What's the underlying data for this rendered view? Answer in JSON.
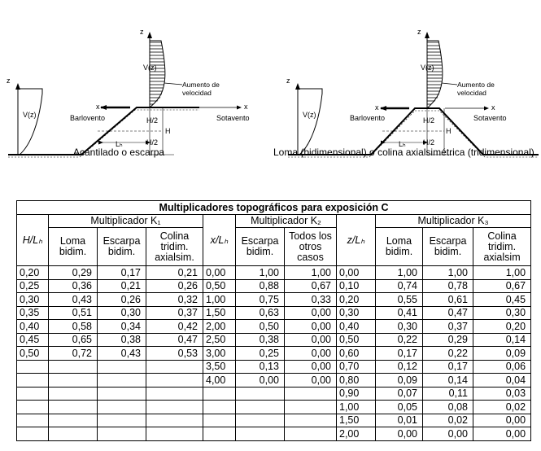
{
  "figure": {
    "left": {
      "caption": "Acantilado o escarpa",
      "z": "z",
      "vz": "V(z)",
      "x": "x",
      "barlovento": "Barlovento",
      "sotavento": "Sotavento",
      "h2": "H/2",
      "h": "H",
      "lh": "Lₕ",
      "aumento": [
        "Aumento de",
        "velocidad"
      ]
    },
    "right": {
      "caption": "Loma (bidimensional) o colina axialsimétrica (tridimensional)",
      "z": "z",
      "vz": "V(z)",
      "x": "x",
      "barlovento": "Barlovento",
      "sotavento": "Sotavento",
      "h2": "H/2",
      "h": "H",
      "lh": "Lₕ",
      "aumento": [
        "Aumento de",
        "velocidad"
      ]
    }
  },
  "table": {
    "title": "Multiplicadores topográficos para exposición C",
    "groups": {
      "k1": "Multiplicador K₁",
      "k2": "Multiplicador K₂",
      "k3": "Multiplicador K₃"
    },
    "headers": {
      "h_lh": "H/Lₕ",
      "x_lh": "x/Lₕ",
      "z_lh": "z/Lₕ",
      "k1": [
        "Loma bidim.",
        "Escarpa bidim.",
        "Colina tridim. axialsim."
      ],
      "k2": [
        "Escarpa bidim.",
        "Todos los otros casos"
      ],
      "k3": [
        "Loma bidim.",
        "Escarpa bidim.",
        "Colina tridim. axialsim"
      ]
    },
    "rows": [
      [
        "0,20",
        "0,29",
        "0,17",
        "0,21",
        "0,00",
        "1,00",
        "1,00",
        "0,00",
        "1,00",
        "1,00",
        "1,00"
      ],
      [
        "0,25",
        "0,36",
        "0,21",
        "0,26",
        "0,50",
        "0,88",
        "0,67",
        "0,10",
        "0,74",
        "0,78",
        "0,67"
      ],
      [
        "0,30",
        "0,43",
        "0,26",
        "0,32",
        "1,00",
        "0,75",
        "0,33",
        "0,20",
        "0,55",
        "0,61",
        "0,45"
      ],
      [
        "0,35",
        "0,51",
        "0,30",
        "0,37",
        "1,50",
        "0,63",
        "0,00",
        "0,30",
        "0,41",
        "0,47",
        "0,30"
      ],
      [
        "0,40",
        "0,58",
        "0,34",
        "0,42",
        "2,00",
        "0,50",
        "0,00",
        "0,40",
        "0,30",
        "0,37",
        "0,20"
      ],
      [
        "0,45",
        "0,65",
        "0,38",
        "0,47",
        "2,50",
        "0,38",
        "0,00",
        "0,50",
        "0,22",
        "0,29",
        "0,14"
      ],
      [
        "0,50",
        "0,72",
        "0,43",
        "0,53",
        "3,00",
        "0,25",
        "0,00",
        "0,60",
        "0,17",
        "0,22",
        "0,09"
      ],
      [
        "",
        "",
        "",
        "",
        "3,50",
        "0,13",
        "0,00",
        "0,70",
        "0,12",
        "0,17",
        "0,06"
      ],
      [
        "",
        "",
        "",
        "",
        "4,00",
        "0,00",
        "0,00",
        "0,80",
        "0,09",
        "0,14",
        "0,04"
      ],
      [
        "",
        "",
        "",
        "",
        "",
        "",
        "",
        "0,90",
        "0,07",
        "0,11",
        "0,03"
      ],
      [
        "",
        "",
        "",
        "",
        "",
        "",
        "",
        "1,00",
        "0,05",
        "0,08",
        "0,02"
      ],
      [
        "",
        "",
        "",
        "",
        "",
        "",
        "",
        "1,50",
        "0,01",
        "0,02",
        "0,00"
      ],
      [
        "",
        "",
        "",
        "",
        "",
        "",
        "",
        "2,00",
        "0,00",
        "0,00",
        "0,00"
      ]
    ]
  }
}
